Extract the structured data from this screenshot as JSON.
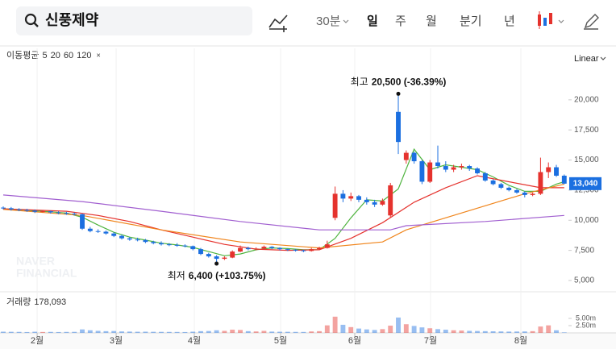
{
  "header": {
    "search": "신풍제약",
    "interval": "30분",
    "periods": [
      "일",
      "주",
      "월",
      "분기",
      "년"
    ]
  },
  "chart_data": {
    "type": "candlestick",
    "scale": "Linear",
    "watermark": [
      "NAVER",
      "FINANCIAL"
    ],
    "ma_title": "이동평균",
    "up_color": "#e5322d",
    "down_color": "#1b6fe0",
    "ylim": [
      4530,
      22600
    ],
    "yticks": [
      {
        "value": 5000,
        "label": "5,000"
      },
      {
        "value": 7500,
        "label": "7,500"
      },
      {
        "value": 10000,
        "label": "10,000"
      },
      {
        "value": 12500,
        "label": "12,500"
      },
      {
        "value": 15000,
        "label": "15,000"
      },
      {
        "value": 17500,
        "label": "17,500"
      },
      {
        "value": 20000,
        "label": "20,000"
      }
    ],
    "xlim": [
      -0.41,
      71.53
    ],
    "xticks": [
      {
        "value": 4.29,
        "label": "2월"
      },
      {
        "value": 14.29,
        "label": "3월"
      },
      {
        "value": 24.18,
        "label": "4월"
      },
      {
        "value": 35.1,
        "label": "5월"
      },
      {
        "value": 44.49,
        "label": "6월"
      },
      {
        "value": 54.08,
        "label": "7월"
      },
      {
        "value": 65.51,
        "label": "8월"
      }
    ],
    "ohlc": [
      [
        11050,
        11150,
        10900,
        11000
      ],
      [
        11000,
        11100,
        10800,
        10900
      ],
      [
        10900,
        11000,
        10750,
        10850
      ],
      [
        10850,
        10950,
        10700,
        10800
      ],
      [
        10800,
        10900,
        10600,
        10700
      ],
      [
        10700,
        10850,
        10650,
        10750
      ],
      [
        10750,
        10800,
        10550,
        10650
      ],
      [
        10650,
        10750,
        10500,
        10600
      ],
      [
        10600,
        10700,
        10450,
        10550
      ],
      [
        10550,
        10650,
        10400,
        10500
      ],
      [
        10500,
        10550,
        9200,
        9300
      ],
      [
        9300,
        9450,
        9000,
        9100
      ],
      [
        9100,
        9250,
        8950,
        9050
      ],
      [
        9050,
        9150,
        8800,
        8900
      ],
      [
        8900,
        9000,
        8600,
        8700
      ],
      [
        8700,
        8800,
        8400,
        8500
      ],
      [
        8500,
        8600,
        8300,
        8400
      ],
      [
        8400,
        8550,
        8250,
        8350
      ],
      [
        8350,
        8450,
        8100,
        8200
      ],
      [
        8200,
        8300,
        8000,
        8100
      ],
      [
        8100,
        8250,
        7900,
        8000
      ],
      [
        8000,
        8100,
        7850,
        7950
      ],
      [
        7950,
        8100,
        7800,
        7900
      ],
      [
        7900,
        8000,
        7750,
        7850
      ],
      [
        7850,
        7900,
        7500,
        7600
      ],
      [
        7600,
        7700,
        7100,
        7200
      ],
      [
        7200,
        7300,
        6900,
        7000
      ],
      [
        7000,
        7100,
        6400,
        6800
      ],
      [
        6800,
        7000,
        6700,
        6900
      ],
      [
        6900,
        7500,
        6850,
        7400
      ],
      [
        7400,
        7900,
        7350,
        7700
      ],
      [
        7700,
        7800,
        7500,
        7600
      ],
      [
        7600,
        7750,
        7500,
        7650
      ],
      [
        7650,
        7900,
        7600,
        7800
      ],
      [
        7800,
        7850,
        7600,
        7700
      ],
      [
        7700,
        7750,
        7500,
        7600
      ],
      [
        7600,
        7650,
        7450,
        7550
      ],
      [
        7550,
        7600,
        7400,
        7500
      ],
      [
        7500,
        7550,
        7350,
        7450
      ],
      [
        7450,
        7700,
        7400,
        7600
      ],
      [
        7600,
        7800,
        7550,
        7700
      ],
      [
        7700,
        8300,
        7650,
        8000
      ],
      [
        10200,
        12800,
        10000,
        12200
      ],
      [
        12200,
        12500,
        11500,
        11800
      ],
      [
        11800,
        12300,
        11600,
        12000
      ],
      [
        12000,
        12100,
        11500,
        11700
      ],
      [
        11700,
        11900,
        11300,
        11500
      ],
      [
        11500,
        11700,
        11100,
        11300
      ],
      [
        11300,
        11800,
        11200,
        11600
      ],
      [
        10400,
        13100,
        10200,
        12900
      ],
      [
        19000,
        20500,
        15500,
        16500
      ],
      [
        15000,
        15800,
        14700,
        15600
      ],
      [
        15600,
        15700,
        14700,
        14900
      ],
      [
        14900,
        15000,
        13000,
        13200
      ],
      [
        13200,
        15000,
        13100,
        14800
      ],
      [
        14800,
        16200,
        14300,
        14500
      ],
      [
        14500,
        14900,
        14000,
        14200
      ],
      [
        14200,
        14600,
        14000,
        14400
      ],
      [
        14400,
        14700,
        14200,
        14500
      ],
      [
        14500,
        14600,
        14100,
        14300
      ],
      [
        14300,
        14400,
        13800,
        13900
      ],
      [
        13900,
        14000,
        13200,
        13300
      ],
      [
        13300,
        13400,
        12900,
        13000
      ],
      [
        13000,
        13100,
        12600,
        12700
      ],
      [
        12700,
        12800,
        12400,
        12500
      ],
      [
        12500,
        12600,
        12200,
        12300
      ],
      [
        12300,
        12400,
        11900,
        12100
      ],
      [
        12100,
        12300,
        12000,
        12200
      ],
      [
        12200,
        15200,
        12100,
        14000
      ],
      [
        14000,
        14800,
        13500,
        14400
      ],
      [
        14400,
        14600,
        13600,
        13700
      ],
      [
        13700,
        13800,
        13000,
        13040
      ]
    ],
    "series": [
      {
        "name": "5",
        "color": "#4fb43f",
        "x": [
          0,
          2,
          4,
          6,
          8,
          10,
          12,
          14,
          16,
          18,
          20,
          22,
          24,
          26,
          28,
          30,
          32,
          34,
          36,
          38,
          40,
          42,
          44,
          46,
          48,
          50,
          52,
          54,
          56,
          58,
          60,
          62,
          64,
          66,
          68,
          70,
          71
        ],
        "values": [
          10950,
          10880,
          10780,
          10700,
          10600,
          10250,
          9600,
          9000,
          8600,
          8350,
          8100,
          7950,
          7750,
          7400,
          7050,
          7200,
          7550,
          7700,
          7650,
          7550,
          7550,
          8500,
          10200,
          11700,
          11600,
          12600,
          15900,
          14200,
          14600,
          14400,
          14200,
          13600,
          12900,
          12400,
          12400,
          13000,
          13200
        ]
      },
      {
        "name": "20",
        "color": "#e5322d",
        "x": [
          0,
          4,
          8,
          12,
          16,
          20,
          24,
          28,
          32,
          36,
          40,
          44,
          48,
          52,
          56,
          60,
          64,
          68,
          71
        ],
        "values": [
          10950,
          10850,
          10750,
          10400,
          9900,
          9200,
          8600,
          8000,
          7600,
          7500,
          7550,
          8500,
          9800,
          11500,
          12700,
          13700,
          13200,
          12700,
          12700
        ]
      },
      {
        "name": "60",
        "color": "#f0851c",
        "x": [
          0,
          10,
          20,
          30,
          40,
          48,
          51,
          61,
          66,
          71
        ],
        "values": [
          10900,
          10400,
          9200,
          8200,
          7700,
          8200,
          9200,
          11200,
          12200,
          13000
        ]
      },
      {
        "name": "120",
        "color": "#a15fd0",
        "x": [
          0,
          10,
          20,
          30,
          40,
          49,
          51,
          61,
          71
        ],
        "values": [
          12100,
          11550,
          10750,
          9900,
          9200,
          9200,
          9550,
          9900,
          10400
        ]
      }
    ],
    "annotations": [
      {
        "prefix": "최고",
        "text": "20,500 (-36.39%)",
        "x": 50,
        "value": 20500
      },
      {
        "prefix": "최저",
        "text": "6,400 (+103.75%)",
        "x": 27,
        "value": 6400
      }
    ],
    "price_tag": {
      "value": 13040,
      "label": "13,040"
    },
    "volume": {
      "title": "거래량",
      "ylim": [
        0,
        7800000
      ],
      "yticks": [
        {
          "value": 2500000,
          "label": "2.50m"
        },
        {
          "value": 5000000,
          "label": "5.00m"
        }
      ],
      "values": [
        420000,
        380000,
        350000,
        300000,
        400000,
        320000,
        350000,
        300000,
        340000,
        360000,
        1200000,
        900000,
        700000,
        600000,
        650000,
        500000,
        450000,
        400000,
        420000,
        380000,
        360000,
        340000,
        330000,
        300000,
        420000,
        600000,
        650000,
        900000,
        700000,
        1100000,
        1000000,
        600000,
        500000,
        700000,
        450000,
        400000,
        380000,
        350000,
        330000,
        500000,
        600000,
        2600000,
        5600000,
        2800000,
        2000000,
        1500000,
        1200000,
        1000000,
        1300000,
        2500000,
        5300000,
        3000000,
        2400000,
        1900000,
        1600000,
        1300000,
        1100000,
        900000,
        800000,
        700000,
        650000,
        600000,
        550000,
        500000,
        450000,
        480000,
        500000,
        600000,
        2200000,
        2600000,
        900000,
        178093
      ],
      "value_labels": [
        null,
        null,
        null,
        null,
        null,
        null,
        null,
        null,
        null,
        null,
        null,
        null,
        null,
        null,
        null,
        null,
        null,
        null,
        null,
        null,
        null,
        null,
        null,
        null,
        null,
        null,
        null,
        null,
        null,
        null,
        null,
        null,
        null,
        null,
        null,
        null,
        null,
        null,
        null,
        null,
        null,
        null,
        null,
        null,
        null,
        null,
        null,
        null,
        null,
        null,
        null,
        null,
        null,
        null,
        null,
        null,
        null,
        null,
        null,
        null,
        null,
        null,
        null,
        null,
        null,
        null,
        null,
        null,
        null,
        null,
        null,
        "178,093"
      ]
    }
  }
}
